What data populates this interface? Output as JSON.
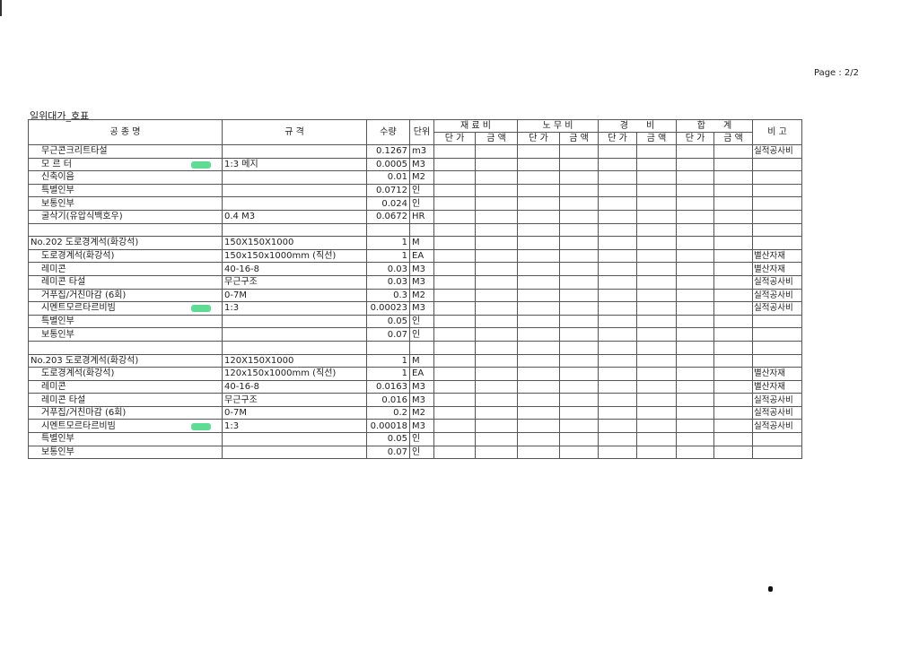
{
  "page_label": "Page : 2/2",
  "doc_title": "일위대가_호표",
  "header": {
    "name": "공 종 명",
    "spec": "규 격",
    "qty": "수량",
    "unit": "단위",
    "groups": [
      "재 료 비",
      "노 무 비",
      "경　　비",
      "합　　계"
    ],
    "sub_price": "단 가",
    "sub_amount": "금 액",
    "note": "비 고"
  },
  "rows": [
    {
      "name": "무근콘크리트타설",
      "spec": "",
      "qty": "0.1267",
      "unit": "m3",
      "note": "실적공사비",
      "indent": true
    },
    {
      "name": "모 르 터",
      "spec": "1:3 메지",
      "qty": "0.0005",
      "unit": "M3",
      "note": "",
      "indent": true,
      "highlight": true
    },
    {
      "name": "신축이음",
      "spec": "",
      "qty": "0.01",
      "unit": "M2",
      "note": "",
      "indent": true
    },
    {
      "name": "특별인부",
      "spec": "",
      "qty": "0.0712",
      "unit": "인",
      "note": "",
      "indent": true
    },
    {
      "name": "보통인부",
      "spec": "",
      "qty": "0.024",
      "unit": "인",
      "note": "",
      "indent": true
    },
    {
      "name": "굴삭기(유압식백호우)",
      "spec": "0.4 M3",
      "qty": "0.0672",
      "unit": "HR",
      "note": "",
      "indent": true
    },
    {
      "name": "",
      "spec": "",
      "qty": "",
      "unit": "",
      "note": ""
    },
    {
      "name": "No.202  도로경계석(화강석)",
      "spec": "150X150X1000",
      "qty": "1",
      "unit": "M",
      "note": ""
    },
    {
      "name": "도로경계석(화강석)",
      "spec": "150x150x1000mm (직선)",
      "qty": "1",
      "unit": "EA",
      "note": "별산자재",
      "indent": true
    },
    {
      "name": "레미콘",
      "spec": "40-16-8",
      "qty": "0.03",
      "unit": "M3",
      "note": "별산자재",
      "indent": true
    },
    {
      "name": "레미콘 타설",
      "spec": "무근구조",
      "qty": "0.03",
      "unit": "M3",
      "note": "실적공사비",
      "indent": true
    },
    {
      "name": "거푸집/거친마감 (6회)",
      "spec": "0-7M",
      "qty": "0.3",
      "unit": "M2",
      "note": "실적공사비",
      "indent": true
    },
    {
      "name": "시멘트모르타르비빔",
      "spec": "1:3",
      "qty": "0.00023",
      "unit": "M3",
      "note": "실적공사비",
      "indent": true,
      "highlight": true
    },
    {
      "name": "특별인부",
      "spec": "",
      "qty": "0.05",
      "unit": "인",
      "note": "",
      "indent": true
    },
    {
      "name": "보통인부",
      "spec": "",
      "qty": "0.07",
      "unit": "인",
      "note": "",
      "indent": true
    },
    {
      "name": "",
      "spec": "",
      "qty": "",
      "unit": "",
      "note": ""
    },
    {
      "name": "No.203  도로경계석(화강석)",
      "spec": "120X150X1000",
      "qty": "1",
      "unit": "M",
      "note": ""
    },
    {
      "name": "도로경계석(화강석)",
      "spec": "120x150x1000mm (직선)",
      "qty": "1",
      "unit": "EA",
      "note": "별산자재",
      "indent": true
    },
    {
      "name": "레미콘",
      "spec": "40-16-8",
      "qty": "0.0163",
      "unit": "M3",
      "note": "별산자재",
      "indent": true
    },
    {
      "name": "레미콘 타설",
      "spec": "무근구조",
      "qty": "0.016",
      "unit": "M3",
      "note": "실적공사비",
      "indent": true
    },
    {
      "name": "거푸집/거친마감 (6회)",
      "spec": "0-7M",
      "qty": "0.2",
      "unit": "M2",
      "note": "실적공사비",
      "indent": true
    },
    {
      "name": "시멘트모르타르비빔",
      "spec": "1:3",
      "qty": "0.00018",
      "unit": "M3",
      "note": "실적공사비",
      "indent": true,
      "highlight": true
    },
    {
      "name": "특별인부",
      "spec": "",
      "qty": "0.05",
      "unit": "인",
      "note": "",
      "indent": true
    },
    {
      "name": "보통인부",
      "spec": "",
      "qty": "0.07",
      "unit": "인",
      "note": "",
      "indent": true
    }
  ],
  "colors": {
    "highlight": "#5fdc94",
    "grid": "#555555"
  }
}
